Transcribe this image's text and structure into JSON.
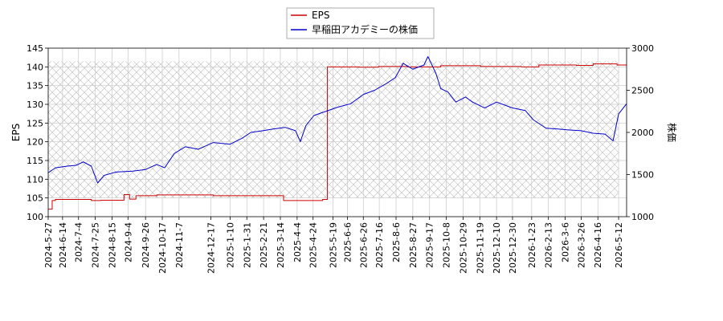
{
  "chart_data": {
    "type": "line",
    "legend": {
      "placement": "top-center",
      "entries": [
        {
          "label": "EPS",
          "color": "#cc0000"
        },
        {
          "label": "早稲田アカデミーの株価",
          "color": "#0000cc"
        }
      ]
    },
    "ylabel_left": "EPS",
    "ylabel_right": "株価",
    "ylim_left": [
      100,
      145
    ],
    "ylim_right": [
      1000,
      3000
    ],
    "yticks_left": [
      "100",
      "105",
      "110",
      "115",
      "120",
      "125",
      "130",
      "135",
      "140",
      "145"
    ],
    "yticks_right": [
      "1000",
      "1500",
      "2000",
      "2500",
      "3000"
    ],
    "x_range": [
      "2024-05-27",
      "2026-05-22"
    ],
    "xticks": [
      "2024-5-27",
      "2024-6-14",
      "2024-7-4",
      "2024-7-25",
      "2024-8-15",
      "2024-9-4",
      "2024-9-26",
      "2024-10-17",
      "2024-11-7",
      "2024-12-17",
      "2025-1-10",
      "2025-1-31",
      "2025-2-21",
      "2025-3-14",
      "2025-4-4",
      "2025-4-24",
      "2025-5-19",
      "2025-6-6",
      "2025-6-26",
      "2025-7-16",
      "2025-8-6",
      "2025-8-27",
      "2025-9-17",
      "2025-10-8",
      "2025-10-29",
      "2025-11-19",
      "2025-12-10",
      "2025-12-30",
      "2026-1-23",
      "2026-2-13",
      "2026-3-6",
      "2026-3-26",
      "2026-4-16",
      "2026-5-12"
    ],
    "grid": true,
    "hatched_region": {
      "x_start": "2024-05-27",
      "x_end": "2026-05-12",
      "y_left": [
        105,
        141.5
      ]
    },
    "series": [
      {
        "name": "EPS",
        "axis": "left",
        "color": "#cc0000",
        "step": true,
        "points": [
          [
            "2024-05-27",
            102.0
          ],
          [
            "2024-06-01",
            104.3
          ],
          [
            "2024-06-05",
            104.6
          ],
          [
            "2024-07-20",
            104.3
          ],
          [
            "2024-08-01",
            104.4
          ],
          [
            "2024-08-30",
            105.9
          ],
          [
            "2024-09-06",
            104.7
          ],
          [
            "2024-09-14",
            105.6
          ],
          [
            "2024-10-10",
            105.8
          ],
          [
            "2024-12-20",
            105.6
          ],
          [
            "2025-03-18",
            104.3
          ],
          [
            "2025-05-06",
            104.6
          ],
          [
            "2025-05-12",
            140.0
          ],
          [
            "2025-06-20",
            139.9
          ],
          [
            "2025-07-15",
            140.1
          ],
          [
            "2025-08-20",
            140.0
          ],
          [
            "2025-10-01",
            140.3
          ],
          [
            "2025-11-20",
            140.1
          ],
          [
            "2026-01-10",
            140.0
          ],
          [
            "2026-02-01",
            140.5
          ],
          [
            "2026-03-20",
            140.4
          ],
          [
            "2026-04-10",
            140.8
          ],
          [
            "2026-05-10",
            140.5
          ],
          [
            "2026-05-22",
            140.4
          ]
        ]
      },
      {
        "name": "早稲田アカデミーの株価",
        "axis": "right",
        "color": "#0000cc",
        "points": [
          [
            "2024-05-27",
            1520
          ],
          [
            "2024-06-05",
            1580
          ],
          [
            "2024-06-20",
            1600
          ],
          [
            "2024-07-01",
            1610
          ],
          [
            "2024-07-10",
            1650
          ],
          [
            "2024-07-20",
            1600
          ],
          [
            "2024-07-28",
            1400
          ],
          [
            "2024-08-05",
            1490
          ],
          [
            "2024-08-20",
            1530
          ],
          [
            "2024-09-10",
            1540
          ],
          [
            "2024-09-26",
            1560
          ],
          [
            "2024-10-10",
            1620
          ],
          [
            "2024-10-20",
            1580
          ],
          [
            "2024-11-01",
            1750
          ],
          [
            "2024-11-15",
            1830
          ],
          [
            "2024-12-01",
            1800
          ],
          [
            "2024-12-20",
            1880
          ],
          [
            "2025-01-10",
            1860
          ],
          [
            "2025-01-25",
            1930
          ],
          [
            "2025-02-05",
            2000
          ],
          [
            "2025-02-20",
            2020
          ],
          [
            "2025-03-05",
            2040
          ],
          [
            "2025-03-20",
            2060
          ],
          [
            "2025-04-02",
            2020
          ],
          [
            "2025-04-08",
            1890
          ],
          [
            "2025-04-15",
            2080
          ],
          [
            "2025-04-25",
            2200
          ],
          [
            "2025-05-10",
            2250
          ],
          [
            "2025-05-25",
            2300
          ],
          [
            "2025-06-10",
            2340
          ],
          [
            "2025-06-26",
            2450
          ],
          [
            "2025-07-10",
            2500
          ],
          [
            "2025-07-25",
            2580
          ],
          [
            "2025-08-05",
            2650
          ],
          [
            "2025-08-15",
            2820
          ],
          [
            "2025-08-27",
            2750
          ],
          [
            "2025-09-10",
            2800
          ],
          [
            "2025-09-15",
            2900
          ],
          [
            "2025-09-25",
            2700
          ],
          [
            "2025-10-01",
            2520
          ],
          [
            "2025-10-10",
            2480
          ],
          [
            "2025-10-20",
            2360
          ],
          [
            "2025-11-01",
            2420
          ],
          [
            "2025-11-10",
            2360
          ],
          [
            "2025-11-25",
            2290
          ],
          [
            "2025-12-10",
            2360
          ],
          [
            "2025-12-30",
            2290
          ],
          [
            "2026-01-15",
            2260
          ],
          [
            "2026-01-25",
            2150
          ],
          [
            "2026-02-10",
            2050
          ],
          [
            "2026-02-25",
            2040
          ],
          [
            "2026-03-10",
            2030
          ],
          [
            "2026-03-26",
            2020
          ],
          [
            "2026-04-10",
            1990
          ],
          [
            "2026-04-25",
            1980
          ],
          [
            "2026-05-05",
            1900
          ],
          [
            "2026-05-12",
            2220
          ],
          [
            "2026-05-22",
            2340
          ]
        ]
      }
    ]
  }
}
